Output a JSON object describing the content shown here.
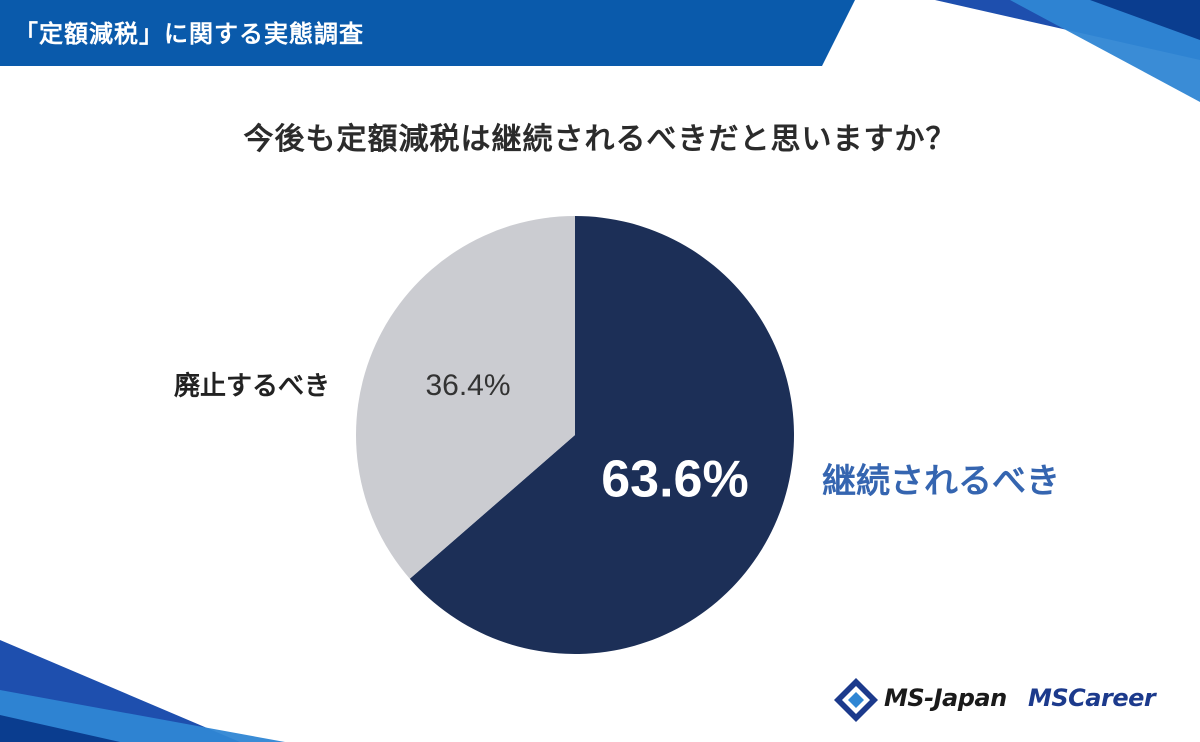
{
  "header": {
    "title": "「定額減税」に関する実態調査"
  },
  "colors": {
    "accent": "#0a5aab",
    "slice_continue": "#1c2f57",
    "slice_abolish": "#cbccd1",
    "label_continue": "#3565b0"
  },
  "logos": {
    "ms_japan": "MS-Japan",
    "ms_career": "MSCareer"
  },
  "chart_data": {
    "type": "pie",
    "title": "今後も定額減税は継続されるべきだと思いますか？",
    "slices": [
      {
        "label": "継続されるべき",
        "value": 63.6,
        "value_label": "63.6%",
        "color": "#1c2f57"
      },
      {
        "label": "廃止するべき",
        "value": 36.4,
        "value_label": "36.4%",
        "color": "#cbccd1"
      }
    ]
  }
}
